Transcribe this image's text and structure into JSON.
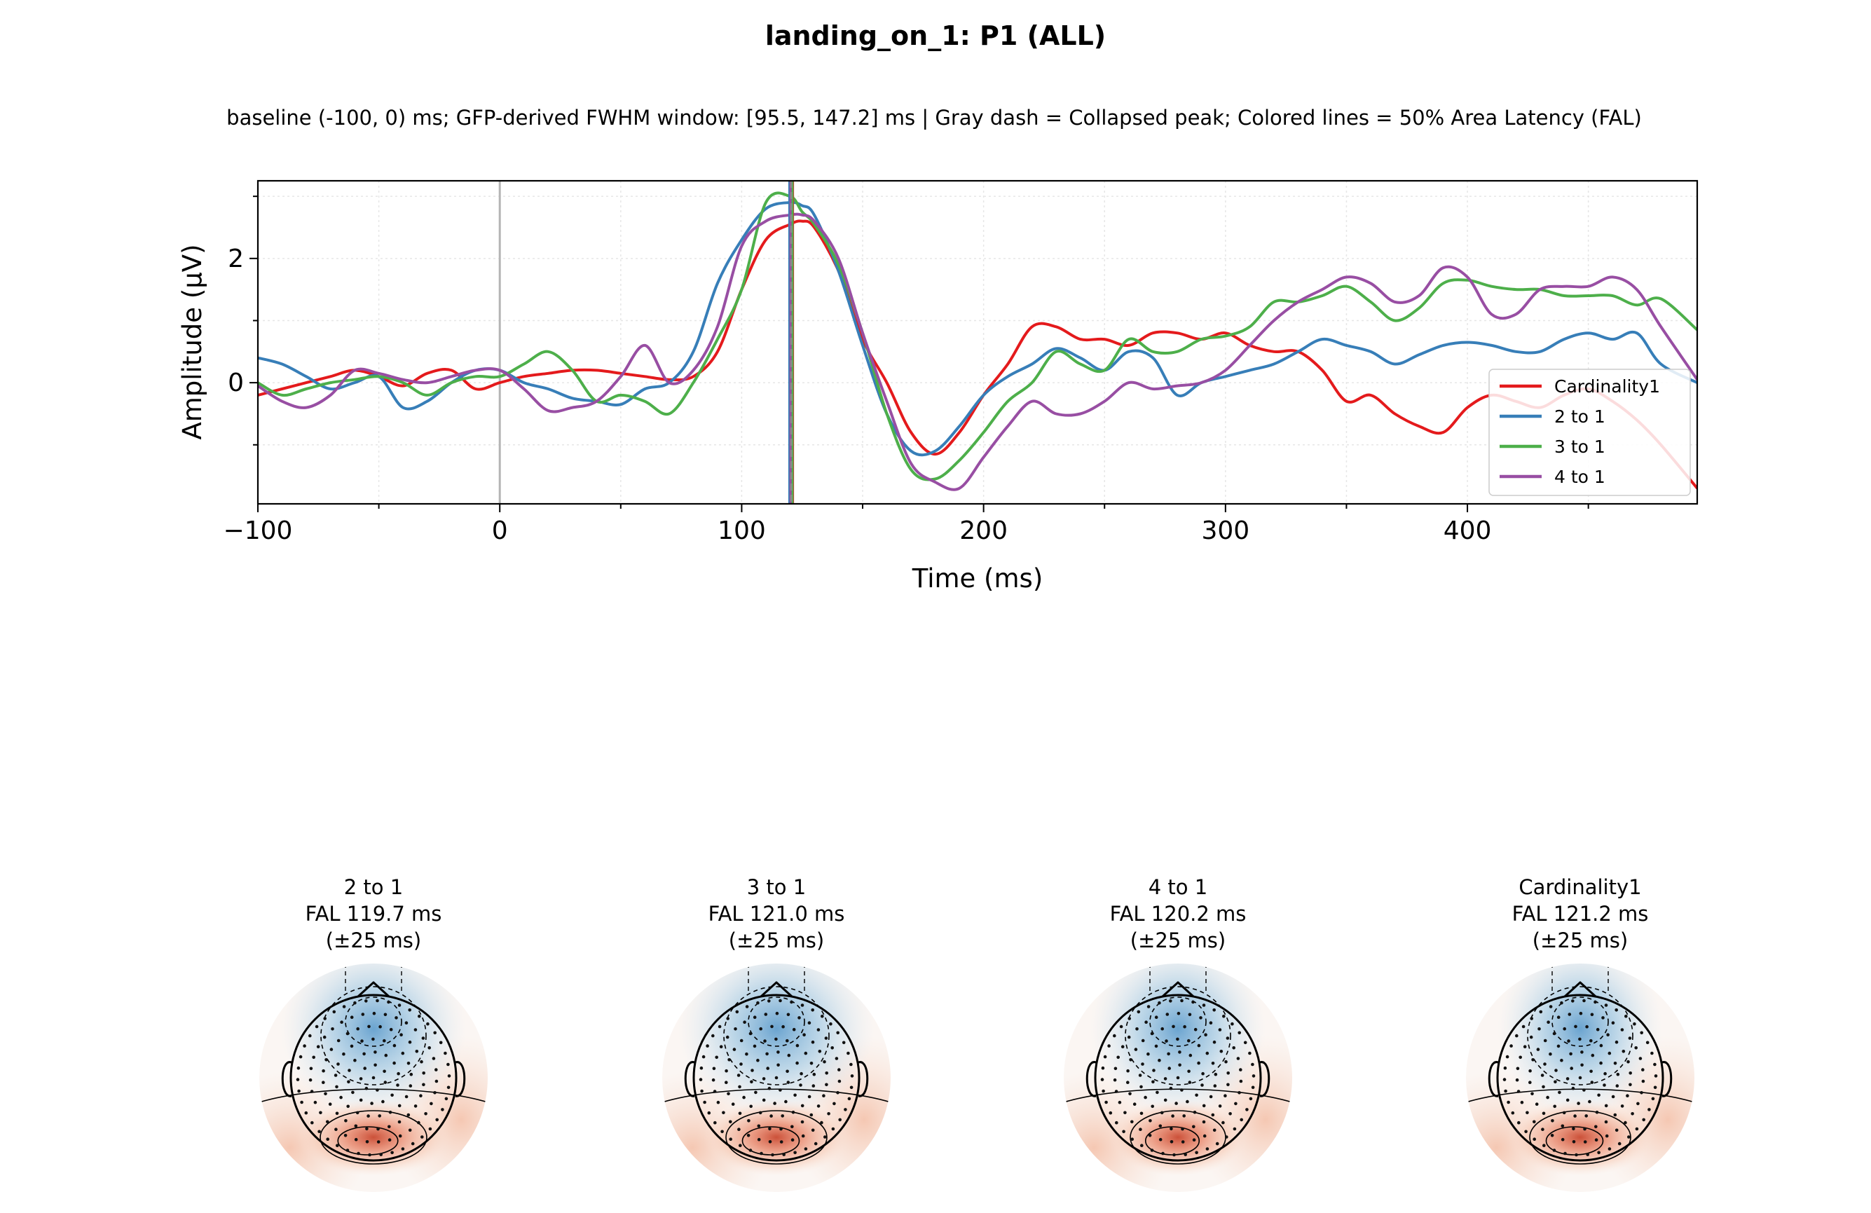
{
  "title": "landing_on_1: P1 (ALL)",
  "subtitle": "baseline (-100, 0) ms; GFP-derived FWHM window: [95.5, 147.2] ms | Gray dash = Collapsed peak; Colored lines = 50% Area Latency (FAL)",
  "chart_data": {
    "type": "line",
    "xlabel": "Time (ms)",
    "ylabel": "Amplitude (µV)",
    "xlim": [
      -100,
      495
    ],
    "ylim": [
      -1.95,
      3.25
    ],
    "xticks": [
      -100,
      0,
      100,
      200,
      300,
      400
    ],
    "xtick_labels": [
      "−100",
      "0",
      "100",
      "200",
      "300",
      "400"
    ],
    "yticks": [
      0,
      2
    ],
    "ytick_labels": [
      "0",
      "2"
    ],
    "grid": true,
    "legend_placement": "lower-right",
    "stimulus_onset": 0,
    "collapsed_peak": 120.5,
    "series": [
      {
        "name": "Cardinality1",
        "color": "#e41a1c",
        "fal": 121.2,
        "x": [
          -100,
          -90,
          -80,
          -70,
          -60,
          -50,
          -40,
          -30,
          -20,
          -10,
          0,
          10,
          20,
          30,
          40,
          50,
          60,
          70,
          80,
          90,
          100,
          110,
          120,
          125,
          130,
          140,
          150,
          160,
          170,
          180,
          190,
          200,
          210,
          220,
          230,
          240,
          250,
          260,
          270,
          280,
          290,
          300,
          310,
          320,
          330,
          340,
          350,
          360,
          370,
          380,
          390,
          400,
          410,
          420,
          430,
          440,
          450,
          460,
          470,
          480,
          495
        ],
        "y": [
          -0.2,
          -0.1,
          0.0,
          0.1,
          0.2,
          0.1,
          -0.05,
          0.15,
          0.2,
          -0.1,
          0.0,
          0.1,
          0.15,
          0.2,
          0.2,
          0.15,
          0.1,
          0.05,
          0.1,
          0.5,
          1.5,
          2.3,
          2.55,
          2.6,
          2.5,
          1.8,
          0.7,
          0.0,
          -0.8,
          -1.15,
          -0.8,
          -0.2,
          0.3,
          0.9,
          0.9,
          0.7,
          0.7,
          0.6,
          0.8,
          0.8,
          0.7,
          0.8,
          0.6,
          0.5,
          0.5,
          0.2,
          -0.3,
          -0.2,
          -0.5,
          -0.7,
          -0.8,
          -0.4,
          -0.2,
          -0.3,
          -0.4,
          -0.2,
          -0.1,
          -0.3,
          -0.6,
          -1.0,
          -1.7
        ]
      },
      {
        "name": "2 to 1",
        "color": "#377eb8",
        "fal": 119.7,
        "x": [
          -100,
          -90,
          -80,
          -70,
          -60,
          -50,
          -40,
          -30,
          -20,
          -10,
          0,
          10,
          20,
          30,
          40,
          50,
          60,
          70,
          80,
          90,
          100,
          110,
          120,
          125,
          130,
          140,
          150,
          160,
          170,
          180,
          190,
          200,
          210,
          220,
          230,
          240,
          250,
          260,
          270,
          280,
          290,
          300,
          310,
          320,
          330,
          340,
          350,
          360,
          370,
          380,
          390,
          400,
          410,
          420,
          430,
          440,
          450,
          460,
          470,
          480,
          495
        ],
        "y": [
          0.4,
          0.3,
          0.1,
          -0.1,
          0.0,
          0.1,
          -0.4,
          -0.3,
          0.0,
          0.2,
          0.2,
          0.0,
          -0.1,
          -0.25,
          -0.3,
          -0.35,
          -0.1,
          0.0,
          0.5,
          1.6,
          2.3,
          2.8,
          2.9,
          2.85,
          2.7,
          1.8,
          0.6,
          -0.5,
          -1.1,
          -1.1,
          -0.7,
          -0.2,
          0.1,
          0.3,
          0.55,
          0.4,
          0.2,
          0.5,
          0.4,
          -0.2,
          0.0,
          0.1,
          0.2,
          0.3,
          0.5,
          0.7,
          0.6,
          0.5,
          0.3,
          0.45,
          0.6,
          0.65,
          0.6,
          0.5,
          0.5,
          0.7,
          0.8,
          0.7,
          0.8,
          0.3,
          0.0
        ]
      },
      {
        "name": "3 to 1",
        "color": "#4daf4a",
        "fal": 121.0,
        "x": [
          -100,
          -90,
          -80,
          -70,
          -60,
          -50,
          -40,
          -30,
          -20,
          -10,
          0,
          10,
          20,
          30,
          40,
          50,
          60,
          70,
          80,
          90,
          100,
          110,
          120,
          125,
          130,
          140,
          150,
          160,
          170,
          180,
          190,
          200,
          210,
          220,
          230,
          240,
          250,
          260,
          270,
          280,
          290,
          300,
          310,
          320,
          330,
          340,
          350,
          360,
          370,
          380,
          390,
          400,
          410,
          420,
          430,
          440,
          450,
          460,
          470,
          480,
          495
        ],
        "y": [
          0.0,
          -0.2,
          -0.1,
          0.0,
          0.05,
          0.1,
          0.0,
          -0.2,
          0.0,
          0.1,
          0.1,
          0.3,
          0.5,
          0.2,
          -0.3,
          -0.2,
          -0.3,
          -0.5,
          0.0,
          0.7,
          1.5,
          2.9,
          3.0,
          2.75,
          2.55,
          1.9,
          0.8,
          -0.5,
          -1.4,
          -1.55,
          -1.25,
          -0.8,
          -0.3,
          0.0,
          0.5,
          0.3,
          0.2,
          0.7,
          0.5,
          0.5,
          0.7,
          0.75,
          0.9,
          1.3,
          1.3,
          1.4,
          1.55,
          1.3,
          1.0,
          1.2,
          1.6,
          1.65,
          1.55,
          1.5,
          1.5,
          1.4,
          1.4,
          1.4,
          1.25,
          1.35,
          0.85
        ]
      },
      {
        "name": "4 to 1",
        "color": "#984ea3",
        "fal": 120.2,
        "x": [
          -100,
          -90,
          -80,
          -70,
          -60,
          -50,
          -40,
          -30,
          -20,
          -10,
          0,
          10,
          20,
          30,
          40,
          50,
          60,
          70,
          80,
          90,
          100,
          110,
          120,
          125,
          130,
          140,
          150,
          160,
          170,
          180,
          190,
          200,
          210,
          220,
          230,
          240,
          250,
          260,
          270,
          280,
          290,
          300,
          310,
          320,
          330,
          340,
          350,
          360,
          370,
          380,
          390,
          400,
          410,
          420,
          430,
          440,
          450,
          460,
          470,
          480,
          495
        ],
        "y": [
          -0.05,
          -0.3,
          -0.4,
          -0.2,
          0.2,
          0.15,
          0.05,
          0.0,
          0.1,
          0.2,
          0.2,
          -0.1,
          -0.45,
          -0.4,
          -0.3,
          0.1,
          0.6,
          0.0,
          0.2,
          0.9,
          2.2,
          2.6,
          2.7,
          2.7,
          2.6,
          2.0,
          0.8,
          -0.3,
          -1.3,
          -1.6,
          -1.7,
          -1.2,
          -0.7,
          -0.3,
          -0.5,
          -0.5,
          -0.3,
          0.0,
          -0.1,
          -0.05,
          0.0,
          0.2,
          0.6,
          1.0,
          1.3,
          1.5,
          1.7,
          1.6,
          1.3,
          1.4,
          1.85,
          1.7,
          1.1,
          1.1,
          1.5,
          1.55,
          1.55,
          1.7,
          1.5,
          0.9,
          0.05
        ]
      }
    ]
  },
  "topomaps": [
    {
      "series": "2 to 1",
      "line1": "2 to 1",
      "line2": "FAL 119.7 ms",
      "line3": "(±25 ms)",
      "pos_strength": 0.95,
      "neg_strength": 0.75
    },
    {
      "series": "3 to 1",
      "line1": "3 to 1",
      "line2": "FAL 121.0 ms",
      "line3": "(±25 ms)",
      "pos_strength": 0.9,
      "neg_strength": 0.8
    },
    {
      "series": "4 to 1",
      "line1": "4 to 1",
      "line2": "FAL 120.2 ms",
      "line3": "(±25 ms)",
      "pos_strength": 0.85,
      "neg_strength": 0.7
    },
    {
      "series": "Cardinality1",
      "line1": "Cardinality1",
      "line2": "FAL 121.2 ms",
      "line3": "(±25 ms)",
      "pos_strength": 0.9,
      "neg_strength": 0.65
    }
  ]
}
